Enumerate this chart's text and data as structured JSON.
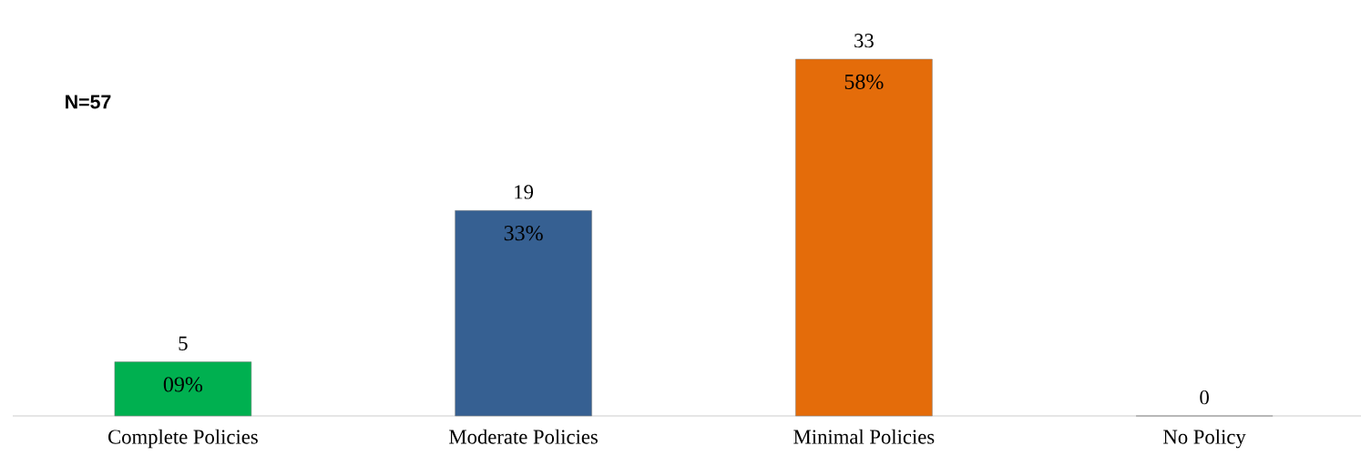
{
  "chart_data": {
    "type": "bar",
    "categories": [
      "Complete Policies",
      "Moderate Policies",
      "Minimal Policies",
      "No Policy"
    ],
    "values": [
      5,
      19,
      33,
      0
    ],
    "colors": [
      "#00b050",
      "#366092",
      "#e46c0a",
      "#e46c0a"
    ],
    "data_labels": true,
    "annotations": [
      "N=57",
      {
        "text": "09%",
        "x": "Complete Policies",
        "y": 5
      },
      {
        "text": "33%",
        "x": "Moderate Policies",
        "y": 19
      },
      {
        "text": "58%",
        "x": "Minimal Policies",
        "y": 33
      }
    ]
  }
}
